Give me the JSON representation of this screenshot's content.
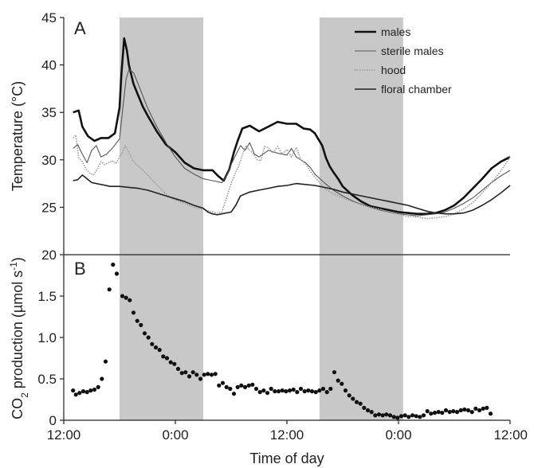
{
  "chart_data": [
    {
      "panel": "A",
      "type": "line",
      "title": "",
      "xlabel": "",
      "ylabel": "Temperature  (°C)",
      "xlim": [
        12,
        60
      ],
      "ylim": [
        20,
        45
      ],
      "yticks": [
        20,
        25,
        30,
        35,
        40,
        45
      ],
      "shaded_intervals": [
        [
          18,
          27
        ],
        [
          39.5,
          48.5
        ]
      ],
      "shade_color": "#c8c8c8",
      "legend": "top-right",
      "series": [
        {
          "name": "males",
          "color": "#111111",
          "style": "thick",
          "x": [
            13.0,
            13.6,
            14.0,
            14.6,
            15.3,
            16.0,
            16.8,
            17.5,
            18.0,
            18.2,
            18.5,
            18.8,
            19.0,
            19.5,
            20.0,
            20.5,
            21.0,
            22.0,
            23.0,
            24.0,
            25.0,
            26.0,
            27.0,
            28.0,
            28.6,
            29.2,
            29.8,
            30.3,
            30.7,
            31.2,
            32.0,
            33.0,
            34.0,
            35.0,
            36.0,
            37.0,
            37.8,
            38.5,
            39.0,
            39.8,
            40.2,
            40.6,
            41.0,
            41.5,
            42.0,
            43.0,
            44.0,
            45.0,
            46.0,
            47.0,
            48.0,
            49.0,
            50.0,
            51.0,
            52.0,
            53.0,
            54.0,
            55.0,
            56.0,
            57.0,
            58.0,
            59.0,
            60.0
          ],
          "y": [
            35.0,
            35.2,
            33.5,
            32.5,
            32.0,
            32.3,
            32.3,
            32.8,
            35.5,
            39.0,
            42.8,
            41.5,
            40.0,
            38.0,
            36.8,
            35.6,
            34.7,
            33.0,
            31.6,
            30.8,
            29.7,
            29.1,
            28.9,
            28.9,
            28.3,
            27.8,
            29.0,
            30.8,
            32.0,
            33.3,
            33.6,
            33.0,
            33.5,
            34.0,
            33.8,
            33.8,
            33.3,
            33.2,
            32.8,
            31.5,
            30.2,
            29.3,
            28.7,
            28.0,
            27.2,
            26.3,
            25.6,
            25.1,
            24.9,
            24.7,
            24.5,
            24.4,
            24.3,
            24.3,
            24.4,
            24.7,
            25.2,
            26.0,
            27.0,
            28.0,
            29.1,
            29.8,
            30.3
          ]
        },
        {
          "name": "sterile males",
          "color": "#555555",
          "style": "thin",
          "x": [
            13.0,
            13.5,
            14.0,
            14.5,
            15.0,
            15.5,
            16.0,
            16.6,
            17.3,
            18.0,
            18.3,
            18.7,
            19.0,
            19.5,
            20.0,
            21.0,
            22.0,
            23.0,
            24.0,
            25.0,
            26.0,
            27.0,
            28.0,
            28.5,
            29.0,
            29.5,
            30.0,
            30.5,
            31.0,
            31.5,
            32.0,
            32.5,
            33.0,
            34.0,
            35.0,
            36.0,
            36.5,
            37.0,
            37.5,
            38.0,
            38.5,
            39.0,
            40.0,
            41.0,
            42.0,
            43.0,
            44.0,
            45.0,
            46.0,
            47.0,
            48.0,
            49.0,
            50.0,
            51.0,
            52.0,
            53.0,
            54.0,
            55.0,
            56.0,
            57.0,
            58.0,
            59.0,
            60.0
          ],
          "y": [
            31.2,
            31.6,
            30.6,
            29.7,
            31.0,
            31.5,
            30.3,
            30.6,
            31.3,
            32.2,
            35.0,
            38.5,
            39.5,
            39.2,
            38.0,
            35.5,
            33.5,
            31.8,
            30.3,
            29.1,
            28.5,
            28.0,
            27.8,
            27.7,
            27.6,
            28.3,
            29.5,
            30.5,
            31.5,
            31.0,
            31.8,
            30.6,
            30.3,
            31.0,
            30.7,
            30.5,
            31.2,
            30.3,
            30.0,
            29.7,
            29.2,
            28.5,
            27.6,
            26.8,
            26.2,
            25.7,
            25.3,
            25.0,
            24.7,
            24.5,
            24.3,
            24.2,
            24.1,
            24.2,
            24.3,
            24.5,
            24.9,
            25.4,
            26.0,
            26.8,
            27.6,
            28.3,
            28.9
          ]
        },
        {
          "name": "hood",
          "color": "#9a9a9a",
          "style": "dotted",
          "x": [
            13.0,
            13.3,
            13.6,
            14.0,
            14.4,
            14.8,
            15.2,
            15.6,
            16.0,
            16.4,
            16.8,
            17.2,
            17.6,
            18.0,
            18.3,
            18.6,
            19.0,
            19.4,
            19.8,
            20.2,
            20.6,
            21.0,
            21.5,
            22.0,
            22.5,
            23.0,
            23.5,
            24.0,
            25.0,
            26.0,
            27.0,
            28.0,
            28.5,
            29.0,
            29.5,
            30.0,
            30.4,
            30.8,
            31.2,
            31.6,
            32.0,
            32.4,
            32.8,
            33.2,
            33.6,
            34.0,
            34.5,
            35.0,
            35.5,
            36.0,
            36.5,
            37.0,
            37.5,
            38.0,
            38.5,
            39.0,
            40.0,
            41.0,
            42.0,
            43.0,
            44.0,
            45.0,
            46.0,
            47.0,
            48.0,
            49.0,
            50.0,
            51.0,
            52.0,
            53.0,
            54.0,
            55.0,
            56.0,
            57.0,
            58.0,
            59.0,
            60.0
          ],
          "y": [
            32.3,
            32.6,
            30.2,
            29.8,
            29.0,
            28.6,
            28.4,
            29.0,
            29.8,
            29.5,
            29.7,
            29.9,
            29.6,
            30.3,
            30.8,
            31.5,
            30.8,
            30.0,
            29.5,
            29.2,
            28.8,
            28.4,
            27.9,
            27.4,
            26.9,
            26.4,
            26.0,
            25.8,
            25.4,
            25.0,
            24.8,
            24.5,
            24.4,
            24.5,
            26.0,
            27.5,
            28.5,
            29.3,
            30.5,
            31.5,
            31.0,
            30.6,
            30.0,
            29.9,
            31.4,
            31.3,
            30.7,
            31.4,
            30.6,
            31.1,
            30.3,
            31.3,
            30.0,
            29.6,
            28.8,
            28.2,
            27.0,
            26.4,
            26.0,
            25.6,
            25.3,
            25.0,
            24.8,
            24.5,
            24.3,
            24.0,
            24.0,
            23.8,
            23.9,
            24.0,
            24.3,
            24.8,
            25.5,
            26.5,
            27.6,
            28.8,
            30.3
          ]
        },
        {
          "name": "floral chamber",
          "color": "#222222",
          "style": "medium",
          "x": [
            13.0,
            13.5,
            14.0,
            14.5,
            15.0,
            16.0,
            17.0,
            18.0,
            19.0,
            20.0,
            21.0,
            22.0,
            23.0,
            24.0,
            25.0,
            26.0,
            27.0,
            27.5,
            28.0,
            28.5,
            29.0,
            30.0,
            30.5,
            31.0,
            32.0,
            33.0,
            34.0,
            35.0,
            36.0,
            37.0,
            38.0,
            39.0,
            40.0,
            41.0,
            42.0,
            43.0,
            44.0,
            45.0,
            46.0,
            47.0,
            48.0,
            49.0,
            50.0,
            51.0,
            52.0,
            53.0,
            54.0,
            55.0,
            56.0,
            57.0,
            58.0,
            59.0,
            60.0
          ],
          "y": [
            27.8,
            27.9,
            28.4,
            28.0,
            27.6,
            27.4,
            27.2,
            27.2,
            27.1,
            27.0,
            26.8,
            26.5,
            26.2,
            25.9,
            25.6,
            25.2,
            24.9,
            24.5,
            24.3,
            24.2,
            24.3,
            24.5,
            25.2,
            26.2,
            26.6,
            26.8,
            27.0,
            27.2,
            27.3,
            27.5,
            27.4,
            27.3,
            27.1,
            26.9,
            26.6,
            26.4,
            26.2,
            26.0,
            25.8,
            25.6,
            25.4,
            25.2,
            24.9,
            24.6,
            24.4,
            24.3,
            24.3,
            24.4,
            24.7,
            25.2,
            25.8,
            26.5,
            27.3
          ]
        }
      ]
    },
    {
      "panel": "B",
      "type": "scatter",
      "title": "",
      "xlabel": "Time of day",
      "ylabel_parts": [
        "CO",
        "2",
        " production  (µmol s",
        "-1",
        ")"
      ],
      "xlim": [
        12,
        60
      ],
      "ylim": [
        0,
        2.0
      ],
      "yticks": [
        0,
        0.5,
        1.0,
        1.5
      ],
      "ytick_labels": [
        "0",
        "0.5",
        "1.0",
        "1.5"
      ],
      "xticks": [
        12,
        24,
        36,
        48,
        60
      ],
      "xtick_labels": [
        "12:00",
        "0:00",
        "12:00",
        "0:00",
        "12:00"
      ],
      "shaded_intervals": [
        [
          18,
          27
        ],
        [
          39.5,
          48.5
        ]
      ],
      "shade_color": "#c8c8c8",
      "series": [
        {
          "color": "#111111",
          "x": [
            13.0,
            13.3,
            13.7,
            14.1,
            14.5,
            14.9,
            15.3,
            15.7,
            16.1,
            16.5,
            16.9,
            17.3,
            17.7,
            18.3,
            18.7,
            19.1,
            19.5,
            19.9,
            20.3,
            20.7,
            21.1,
            21.5,
            21.9,
            22.3,
            22.7,
            23.1,
            23.5,
            23.9,
            24.3,
            24.7,
            25.1,
            25.5,
            25.9,
            26.3,
            26.7,
            27.1,
            27.5,
            27.9,
            28.3,
            28.7,
            29.1,
            29.5,
            29.9,
            30.3,
            30.7,
            31.1,
            31.5,
            31.9,
            32.3,
            32.7,
            33.1,
            33.5,
            33.9,
            34.3,
            34.7,
            35.1,
            35.5,
            35.9,
            36.3,
            36.7,
            37.1,
            37.5,
            37.9,
            38.3,
            38.7,
            39.1,
            39.5,
            39.9,
            40.3,
            40.7,
            41.1,
            41.5,
            41.9,
            42.3,
            42.7,
            43.1,
            43.5,
            43.9,
            44.3,
            44.7,
            45.1,
            45.5,
            45.9,
            46.3,
            46.7,
            47.1,
            47.5,
            47.9,
            48.3,
            48.7,
            49.1,
            49.5,
            49.9,
            50.3,
            50.7,
            51.1,
            51.5,
            51.9,
            52.3,
            52.7,
            53.1,
            53.5,
            53.9,
            54.3,
            54.7,
            55.1,
            55.5,
            55.9,
            56.3,
            56.7,
            57.1,
            57.5,
            57.9
          ],
          "y": [
            0.36,
            0.31,
            0.33,
            0.35,
            0.34,
            0.36,
            0.37,
            0.4,
            0.5,
            0.71,
            1.58,
            1.88,
            1.77,
            1.5,
            1.48,
            1.45,
            1.3,
            1.2,
            1.15,
            1.05,
            1.0,
            0.92,
            0.88,
            0.85,
            0.77,
            0.75,
            0.7,
            0.68,
            0.62,
            0.57,
            0.58,
            0.53,
            0.58,
            0.55,
            0.5,
            0.55,
            0.56,
            0.55,
            0.56,
            0.42,
            0.45,
            0.4,
            0.38,
            0.32,
            0.4,
            0.42,
            0.4,
            0.42,
            0.43,
            0.38,
            0.34,
            0.36,
            0.33,
            0.38,
            0.35,
            0.35,
            0.36,
            0.35,
            0.36,
            0.37,
            0.34,
            0.38,
            0.35,
            0.36,
            0.35,
            0.34,
            0.36,
            0.38,
            0.34,
            0.38,
            0.58,
            0.48,
            0.44,
            0.36,
            0.3,
            0.26,
            0.22,
            0.2,
            0.15,
            0.12,
            0.1,
            0.06,
            0.07,
            0.06,
            0.07,
            0.06,
            0.04,
            0.03,
            0.05,
            0.06,
            0.04,
            0.06,
            0.05,
            0.04,
            0.06,
            0.11,
            0.08,
            0.09,
            0.1,
            0.09,
            0.12,
            0.1,
            0.11,
            0.1,
            0.12,
            0.13,
            0.12,
            0.1,
            0.14,
            0.12,
            0.14,
            0.15,
            0.08
          ]
        }
      ]
    }
  ]
}
